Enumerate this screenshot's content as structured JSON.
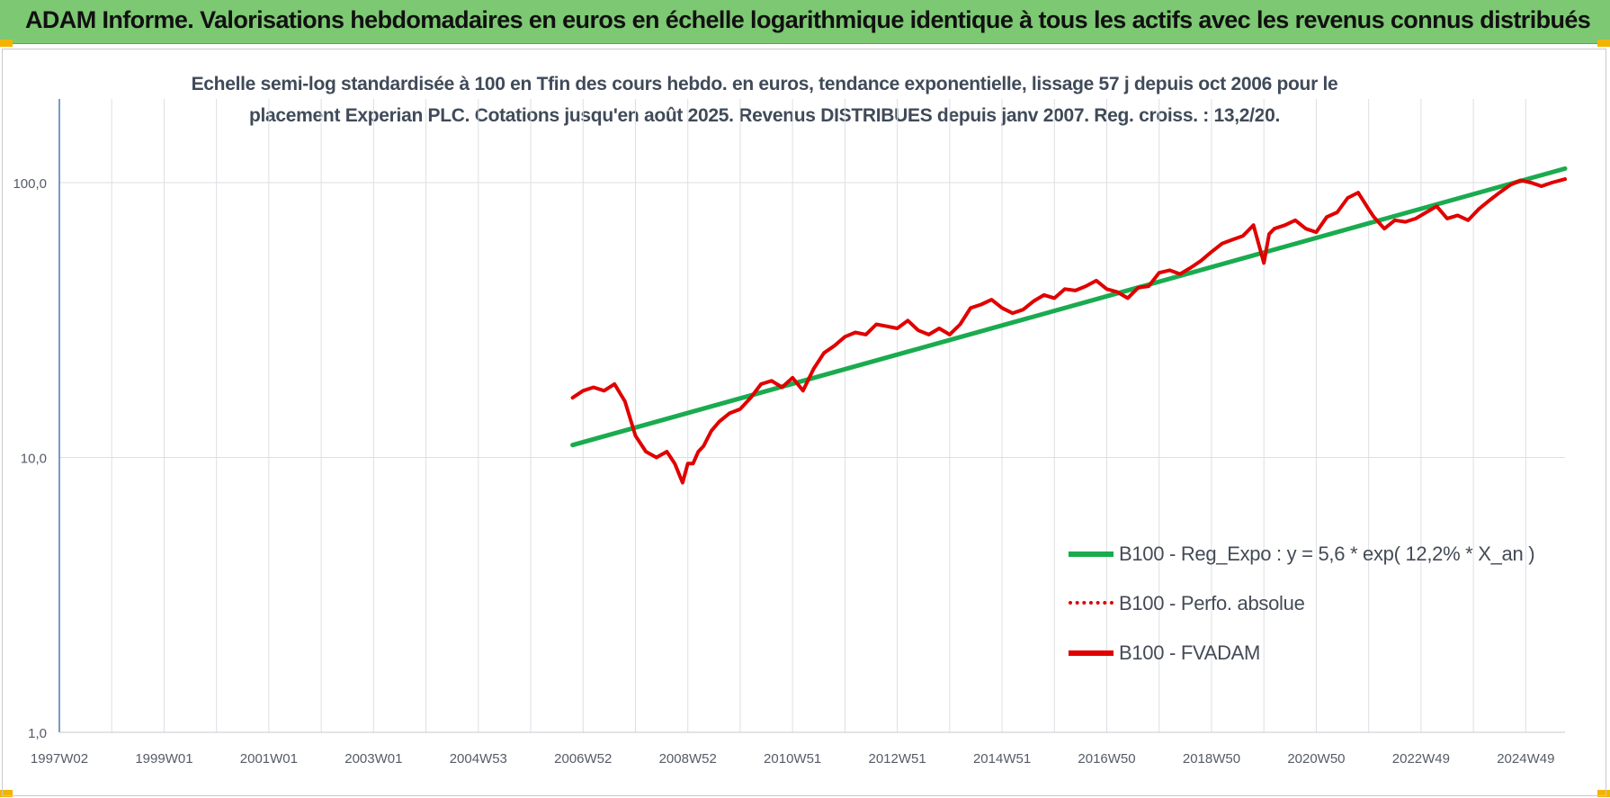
{
  "header": {
    "title": "ADAM Informe. Valorisations hebdomadaires en euros en échelle logarithmique identique à tous les actifs avec les revenus connus distribués",
    "background": "#7dc873",
    "corner_color": "#f2b400"
  },
  "chart_data": {
    "type": "line",
    "title_lines": [
      "Echelle semi-log standardisée à 100 en Tfin des cours hebdo. en euros, tendance exponentielle, lissage 57 j depuis oct 2006 pour le",
      "placement Experian PLC. Cotations jusqu'en août 2025. Revenus DISTRIBUES depuis janv 2007. Reg. croiss. : 13,2/20."
    ],
    "y_scale": "log",
    "ylim": [
      1,
      200
    ],
    "y_ticks": [
      {
        "value": 1,
        "label": "1,0"
      },
      {
        "value": 10,
        "label": "10,0"
      },
      {
        "value": 100,
        "label": "100,0"
      }
    ],
    "xlim": [
      1997.0,
      2025.75
    ],
    "x_ticks": [
      {
        "value": 1997.0,
        "label": "1997W02"
      },
      {
        "value": 1999.0,
        "label": "1999W01"
      },
      {
        "value": 2001.0,
        "label": "2001W01"
      },
      {
        "value": 2003.0,
        "label": "2003W01"
      },
      {
        "value": 2005.0,
        "label": "2004W53"
      },
      {
        "value": 2007.0,
        "label": "2006W52"
      },
      {
        "value": 2009.0,
        "label": "2008W52"
      },
      {
        "value": 2011.0,
        "label": "2010W51"
      },
      {
        "value": 2013.0,
        "label": "2012W51"
      },
      {
        "value": 2015.0,
        "label": "2014W51"
      },
      {
        "value": 2017.0,
        "label": "2016W50"
      },
      {
        "value": 2019.0,
        "label": "2018W50"
      },
      {
        "value": 2021.0,
        "label": "2020W50"
      },
      {
        "value": 2023.0,
        "label": "2022W49"
      },
      {
        "value": 2025.0,
        "label": "2024W49"
      }
    ],
    "grid": true,
    "legend_position": "bottom-right",
    "series": [
      {
        "name": "B100 - Reg_Expo : y = 5,6 * exp( 12,2% *  X_an )",
        "color": "#1aab4f",
        "style": "solid",
        "x": [
          2006.8,
          2025.75
        ],
        "y": [
          11.1,
          112.5
        ]
      },
      {
        "name": "B100 - Perfo. absolue",
        "color": "#e00000",
        "style": "dotted",
        "x": [],
        "y": []
      },
      {
        "name": "B100 - FVADAM",
        "color": "#e00000",
        "style": "solid",
        "x": [
          2006.8,
          2007.0,
          2007.2,
          2007.4,
          2007.6,
          2007.8,
          2008.0,
          2008.2,
          2008.4,
          2008.6,
          2008.75,
          2008.9,
          2009.0,
          2009.1,
          2009.2,
          2009.3,
          2009.45,
          2009.6,
          2009.8,
          2010.0,
          2010.2,
          2010.4,
          2010.6,
          2010.8,
          2011.0,
          2011.2,
          2011.4,
          2011.6,
          2011.8,
          2012.0,
          2012.2,
          2012.4,
          2012.6,
          2012.8,
          2013.0,
          2013.2,
          2013.4,
          2013.6,
          2013.8,
          2014.0,
          2014.2,
          2014.4,
          2014.6,
          2014.8,
          2015.0,
          2015.2,
          2015.4,
          2015.6,
          2015.8,
          2016.0,
          2016.2,
          2016.4,
          2016.6,
          2016.8,
          2017.0,
          2017.2,
          2017.4,
          2017.6,
          2017.8,
          2018.0,
          2018.2,
          2018.4,
          2018.6,
          2018.8,
          2019.0,
          2019.2,
          2019.4,
          2019.6,
          2019.8,
          2020.0,
          2020.1,
          2020.2,
          2020.4,
          2020.6,
          2020.8,
          2021.0,
          2021.2,
          2021.4,
          2021.6,
          2021.8,
          2022.0,
          2022.1,
          2022.3,
          2022.5,
          2022.7,
          2022.9,
          2023.1,
          2023.3,
          2023.5,
          2023.7,
          2023.9,
          2024.1,
          2024.3,
          2024.5,
          2024.7,
          2024.9,
          2025.1,
          2025.3,
          2025.5,
          2025.75
        ],
        "y": [
          16.5,
          17.5,
          18,
          17.5,
          18.5,
          16,
          12,
          10.5,
          10,
          10.5,
          9.5,
          8.1,
          9.5,
          9.5,
          10.5,
          11,
          12.5,
          13.5,
          14.5,
          15,
          16.5,
          18.5,
          19,
          18,
          19.5,
          17.5,
          21,
          24,
          25.5,
          27.5,
          28.5,
          28,
          30.5,
          30,
          29.5,
          31.5,
          29,
          28,
          29.5,
          28,
          30.5,
          35,
          36,
          37.5,
          35,
          33.5,
          34.5,
          37,
          39,
          38,
          41,
          40.5,
          42,
          44,
          41,
          40,
          38,
          41.5,
          42,
          47,
          48,
          46.5,
          49,
          52,
          56,
          60,
          62,
          64,
          70,
          51,
          65,
          68,
          70,
          73,
          68,
          66,
          75,
          78,
          88,
          92,
          80,
          75,
          68,
          73,
          72,
          74,
          78,
          82,
          74,
          76,
          73,
          80,
          86,
          92,
          98,
          102,
          100,
          97,
          100,
          103
        ]
      }
    ]
  }
}
